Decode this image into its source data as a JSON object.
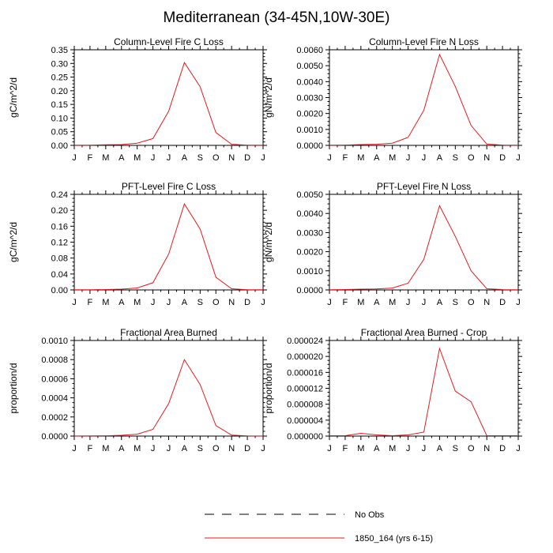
{
  "figure": {
    "title": "Mediterranean (34-45N,10W-30E)"
  },
  "months": [
    "J",
    "F",
    "M",
    "A",
    "M",
    "J",
    "J",
    "A",
    "S",
    "O",
    "N",
    "D",
    "J"
  ],
  "legend": [
    {
      "label": "No Obs",
      "color": "#000000",
      "style": "dashed"
    },
    {
      "label": "1850_164 (yrs 6-15)",
      "color": "#e41a1c",
      "style": "solid"
    }
  ],
  "colors": {
    "series": "#e41a1c",
    "axis": "#000000"
  },
  "chart_data": [
    {
      "type": "line",
      "title": "Column-Level Fire C Loss",
      "ylabel": "gC/m^2/d",
      "ylim": [
        0,
        0.35
      ],
      "yticks": [
        "0.00",
        "0.05",
        "0.10",
        "0.15",
        "0.20",
        "0.25",
        "0.30",
        "0.35"
      ],
      "yticks_values": [
        0,
        0.05,
        0.1,
        0.15,
        0.2,
        0.25,
        0.3,
        0.35
      ],
      "series": [
        {
          "name": "1850_164 (yrs 6-15)",
          "values": [
            0.001,
            0.001,
            0.002,
            0.003,
            0.008,
            0.025,
            0.125,
            0.303,
            0.215,
            0.047,
            0.004,
            0.001,
            0.001
          ]
        }
      ]
    },
    {
      "type": "line",
      "title": "Column-Level Fire N Loss",
      "ylabel": "gN/m^2/d",
      "ylim": [
        0,
        0.006
      ],
      "yticks": [
        "0.0000",
        "0.0010",
        "0.0020",
        "0.0030",
        "0.0040",
        "0.0050",
        "0.0060"
      ],
      "yticks_values": [
        0,
        0.001,
        0.002,
        0.003,
        0.004,
        0.005,
        0.006
      ],
      "series": [
        {
          "name": "1850_164 (yrs 6-15)",
          "values": [
            1e-05,
            2e-05,
            5e-05,
            7e-05,
            0.00014,
            0.0005,
            0.0022,
            0.0057,
            0.0037,
            0.00125,
            8e-05,
            2e-05,
            1e-05
          ]
        }
      ]
    },
    {
      "type": "line",
      "title": "PFT-Level Fire C Loss",
      "ylabel": "gC/m^2/d",
      "ylim": [
        0,
        0.24
      ],
      "yticks": [
        "0.00",
        "0.04",
        "0.08",
        "0.12",
        "0.16",
        "0.20",
        "0.24"
      ],
      "yticks_values": [
        0,
        0.04,
        0.08,
        0.12,
        0.16,
        0.2,
        0.24
      ],
      "series": [
        {
          "name": "1850_164 (yrs 6-15)",
          "values": [
            0.0005,
            0.0005,
            0.001,
            0.002,
            0.005,
            0.018,
            0.09,
            0.216,
            0.153,
            0.032,
            0.003,
            0.0005,
            0.0005
          ]
        }
      ]
    },
    {
      "type": "line",
      "title": "PFT-Level Fire N Loss",
      "ylabel": "gN/m^2/d",
      "ylim": [
        0,
        0.005
      ],
      "yticks": [
        "0.0000",
        "0.0010",
        "0.0020",
        "0.0030",
        "0.0040",
        "0.0050"
      ],
      "yticks_values": [
        0,
        0.001,
        0.002,
        0.003,
        0.004,
        0.005
      ],
      "series": [
        {
          "name": "1850_164 (yrs 6-15)",
          "values": [
            1e-05,
            2e-05,
            4e-05,
            5e-05,
            0.0001,
            0.00035,
            0.0016,
            0.0044,
            0.0028,
            0.001,
            6e-05,
            2e-05,
            1e-05
          ]
        }
      ]
    },
    {
      "type": "line",
      "title": "Fractional Area Burned",
      "ylabel": "proportion/d",
      "ylim": [
        0,
        0.001
      ],
      "yticks": [
        "0.0000",
        "0.0002",
        "0.0004",
        "0.0006",
        "0.0008",
        "0.0010"
      ],
      "yticks_values": [
        0,
        0.0002,
        0.0004,
        0.0006,
        0.0008,
        0.001
      ],
      "series": [
        {
          "name": "1850_164 (yrs 6-15)",
          "values": [
            1e-06,
            2e-06,
            3e-06,
            8e-06,
            2e-05,
            7e-05,
            0.00034,
            0.0008,
            0.00054,
            0.00011,
            1e-05,
            2e-06,
            1e-06
          ]
        }
      ]
    },
    {
      "type": "line",
      "title": "Fractional Area Burned - Crop",
      "ylabel": "proportion/d",
      "ylim": [
        0,
        2.4e-05
      ],
      "yticks": [
        "0.000000",
        "0.000004",
        "0.000008",
        "0.000012",
        "0.000016",
        "0.000020",
        "0.000024"
      ],
      "yticks_values": [
        0,
        4e-06,
        8e-06,
        1.2e-05,
        1.6e-05,
        2e-05,
        2.4e-05
      ],
      "series": [
        {
          "name": "1850_164 (yrs 6-15)",
          "values": [
            1e-07,
            1e-07,
            7e-07,
            3e-07,
            1e-07,
            3e-07,
            1e-06,
            2.2e-05,
            1.13e-05,
            8.6e-06,
            1e-07,
            1e-07,
            1e-07
          ]
        }
      ]
    }
  ]
}
